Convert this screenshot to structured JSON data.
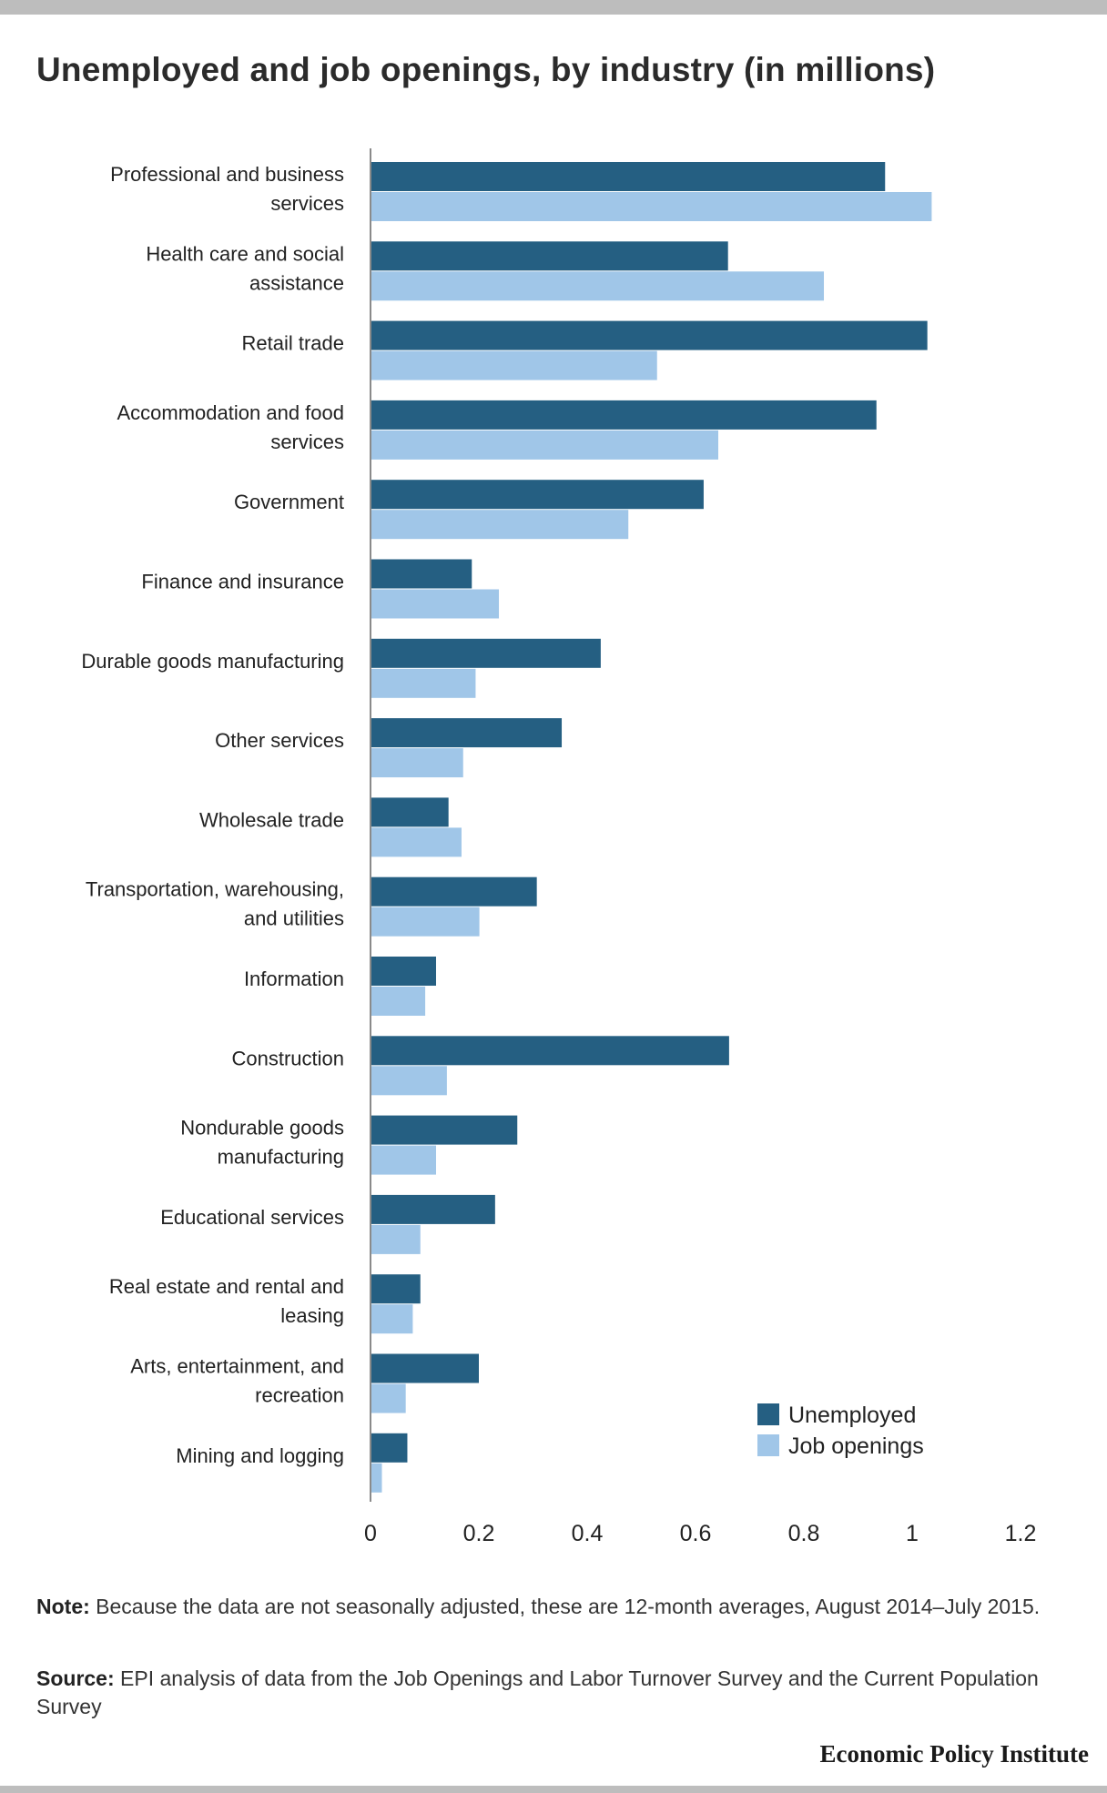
{
  "chart_data": {
    "type": "bar",
    "orientation": "horizontal",
    "title": "Unemployed and job openings, by industry (in millions)",
    "categories": [
      [
        "Professional and business",
        "services"
      ],
      [
        "Health care and social",
        "assistance"
      ],
      [
        "Retail trade"
      ],
      [
        "Accommodation and food",
        "services"
      ],
      [
        "Government"
      ],
      [
        "Finance and insurance"
      ],
      [
        "Durable goods manufacturing"
      ],
      [
        "Other services"
      ],
      [
        "Wholesale trade"
      ],
      [
        "Transportation, warehousing,",
        "and utilities"
      ],
      [
        "Information"
      ],
      [
        "Construction"
      ],
      [
        "Nondurable goods",
        "manufacturing"
      ],
      [
        "Educational services"
      ],
      [
        "Real estate and rental and",
        "leasing"
      ],
      [
        "Arts, entertainment, and",
        "recreation"
      ],
      [
        "Mining and logging"
      ]
    ],
    "series": [
      {
        "name": "Unemployed",
        "color": "#255f82",
        "values": [
          0.95,
          0.66,
          1.028,
          0.934,
          0.615,
          0.187,
          0.425,
          0.353,
          0.144,
          0.307,
          0.121,
          0.662,
          0.271,
          0.23,
          0.092,
          0.2,
          0.068
        ]
      },
      {
        "name": "Job openings",
        "color": "#a0c6e8",
        "values": [
          1.036,
          0.837,
          0.529,
          0.642,
          0.476,
          0.237,
          0.194,
          0.171,
          0.168,
          0.201,
          0.101,
          0.141,
          0.121,
          0.092,
          0.078,
          0.065,
          0.021
        ]
      }
    ],
    "xlim": [
      0,
      1.2
    ],
    "xticks": [
      "0",
      "0.2",
      "0.4",
      "0.6",
      "0.8",
      "1",
      "1.2"
    ],
    "grid": false,
    "legend_position": "bottom-right"
  },
  "note": {
    "label": "Note:",
    "text": " Because the data are not seasonally adjusted, these are 12-month averages, August 2014–July 2015."
  },
  "source": {
    "label": "Source:",
    "text": " EPI analysis of data from the Job Openings and Labor Turnover Survey and the Current Population Survey"
  },
  "brand": "Economic Policy Institute"
}
